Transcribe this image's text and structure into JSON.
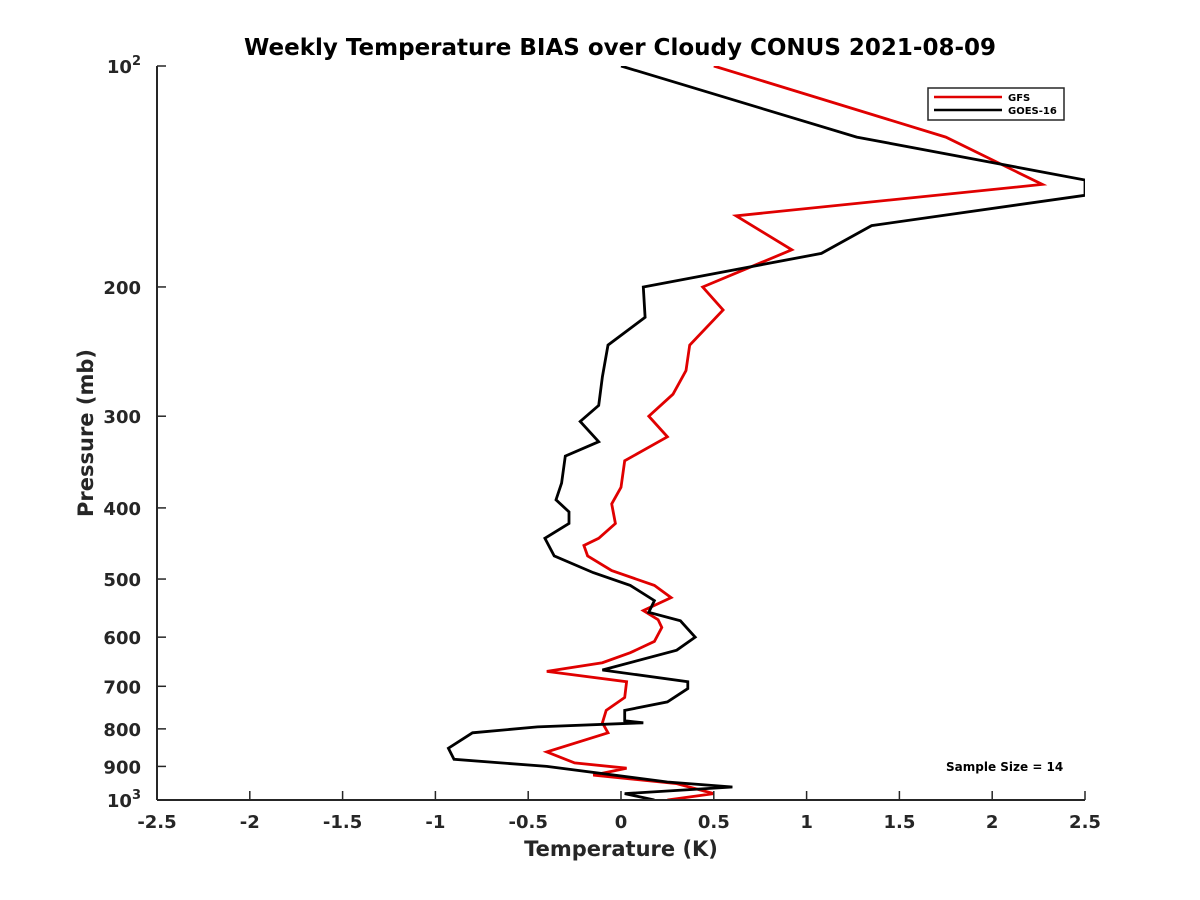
{
  "chart_data": {
    "type": "line",
    "title": "Weekly Temperature BIAS over Cloudy CONUS 2021-08-09",
    "xlabel": "Temperature (K)",
    "ylabel": "Pressure (mb)",
    "xlim": [
      -2.5,
      2.5
    ],
    "ylim": [
      100,
      1000
    ],
    "y_scale": "log",
    "y_reversed": true,
    "x_ticks": [
      "-2.5",
      "-2",
      "-1.5",
      "-1",
      "-0.5",
      "0",
      "0.5",
      "1",
      "1.5",
      "2",
      "2.5"
    ],
    "y_ticks": [
      {
        "value": 100,
        "base": "10",
        "exp": "2"
      },
      {
        "value": 200,
        "label": "200"
      },
      {
        "value": 300,
        "label": "300"
      },
      {
        "value": 400,
        "label": "400"
      },
      {
        "value": 500,
        "label": "500"
      },
      {
        "value": 600,
        "label": "600"
      },
      {
        "value": 700,
        "label": "700"
      },
      {
        "value": 800,
        "label": "800"
      },
      {
        "value": 900,
        "label": "900"
      },
      {
        "value": 1000,
        "base": "10",
        "exp": "3"
      }
    ],
    "grid": false,
    "legend_position": "top-right",
    "annotation": "Sample Size = 14",
    "series": [
      {
        "name": "GFS",
        "color": "#e00000",
        "points": [
          [
            0.5,
            100
          ],
          [
            1.75,
            125
          ],
          [
            2.27,
            145
          ],
          [
            0.62,
            160
          ],
          [
            0.92,
            178
          ],
          [
            0.44,
            200
          ],
          [
            0.55,
            215
          ],
          [
            0.37,
            240
          ],
          [
            0.35,
            260
          ],
          [
            0.28,
            280
          ],
          [
            0.15,
            300
          ],
          [
            0.25,
            320
          ],
          [
            0.02,
            345
          ],
          [
            0.0,
            375
          ],
          [
            -0.05,
            395
          ],
          [
            -0.03,
            420
          ],
          [
            -0.12,
            440
          ],
          [
            -0.2,
            450
          ],
          [
            -0.18,
            465
          ],
          [
            -0.05,
            487
          ],
          [
            0.18,
            510
          ],
          [
            0.27,
            530
          ],
          [
            0.12,
            552
          ],
          [
            0.2,
            568
          ],
          [
            0.22,
            582
          ],
          [
            0.18,
            608
          ],
          [
            0.05,
            630
          ],
          [
            -0.1,
            650
          ],
          [
            -0.4,
            668
          ],
          [
            0.03,
            690
          ],
          [
            0.02,
            725
          ],
          [
            -0.08,
            755
          ],
          [
            -0.1,
            785
          ],
          [
            -0.07,
            810
          ],
          [
            -0.4,
            860
          ],
          [
            -0.25,
            890
          ],
          [
            0.03,
            905
          ],
          [
            -0.15,
            925
          ],
          [
            0.3,
            950
          ],
          [
            0.5,
            980
          ],
          [
            0.25,
            1000
          ]
        ]
      },
      {
        "name": "GOES-16",
        "color": "#000000",
        "points": [
          [
            0.0,
            100
          ],
          [
            1.27,
            125
          ],
          [
            2.5,
            143
          ],
          [
            2.5,
            150
          ],
          [
            1.35,
            165
          ],
          [
            1.08,
            180
          ],
          [
            0.12,
            200
          ],
          [
            0.13,
            220
          ],
          [
            -0.07,
            240
          ],
          [
            -0.1,
            265
          ],
          [
            -0.12,
            290
          ],
          [
            -0.22,
            305
          ],
          [
            -0.12,
            325
          ],
          [
            -0.3,
            340
          ],
          [
            -0.32,
            370
          ],
          [
            -0.35,
            390
          ],
          [
            -0.28,
            405
          ],
          [
            -0.28,
            420
          ],
          [
            -0.41,
            440
          ],
          [
            -0.36,
            465
          ],
          [
            -0.15,
            490
          ],
          [
            0.05,
            510
          ],
          [
            0.18,
            535
          ],
          [
            0.15,
            555
          ],
          [
            0.32,
            570
          ],
          [
            0.4,
            600
          ],
          [
            0.3,
            625
          ],
          [
            -0.1,
            665
          ],
          [
            0.36,
            690
          ],
          [
            0.36,
            705
          ],
          [
            0.25,
            735
          ],
          [
            0.02,
            755
          ],
          [
            0.02,
            780
          ],
          [
            0.12,
            785
          ],
          [
            -0.45,
            795
          ],
          [
            -0.8,
            810
          ],
          [
            -0.93,
            850
          ],
          [
            -0.9,
            880
          ],
          [
            -0.4,
            900
          ],
          [
            0.25,
            945
          ],
          [
            0.6,
            960
          ],
          [
            0.02,
            980
          ],
          [
            0.18,
            1000
          ]
        ]
      }
    ]
  }
}
